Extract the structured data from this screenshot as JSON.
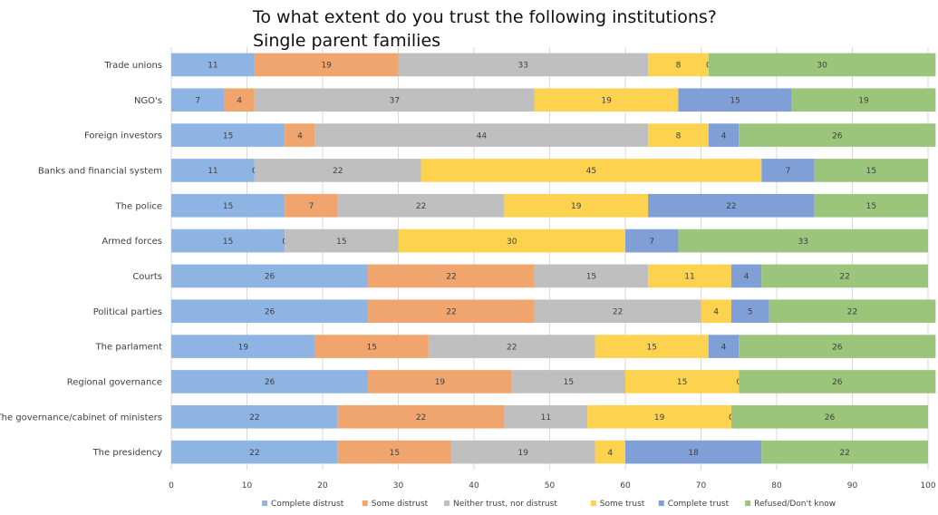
{
  "chart_data": {
    "type": "bar",
    "orientation": "horizontal",
    "stacked": true,
    "title": "To what extent do you trust the following institutions?",
    "subtitle": "Single parent families",
    "xlabel": "",
    "ylabel": "",
    "xlim": [
      0,
      100
    ],
    "xticks": [
      "0",
      "10",
      "20",
      "30",
      "40",
      "50",
      "60",
      "70",
      "80",
      "90",
      "100"
    ],
    "grid": true,
    "legend_position": "bottom",
    "categories": [
      "Trade unions",
      "NGO's",
      "Foreign investors",
      "Banks and financial system",
      "The police",
      "Armed forces",
      "Courts",
      "Political parties",
      "The parlament",
      "Regional governance",
      "The governance/cabinet of ministers",
      "The presidency"
    ],
    "series": [
      {
        "name": "Complete distrust",
        "color": "#8db4e2",
        "values": [
          11,
          7,
          15,
          11,
          15,
          15,
          26,
          26,
          19,
          26,
          22,
          22
        ]
      },
      {
        "name": "Some distrust",
        "color": "#f0a56e",
        "values": [
          19,
          4,
          4,
          0,
          7,
          0,
          22,
          22,
          15,
          19,
          22,
          15
        ]
      },
      {
        "name": "Neither trust, nor distrust",
        "color": "#bfbfbf",
        "values": [
          33,
          37,
          44,
          22,
          22,
          15,
          15,
          22,
          22,
          15,
          11,
          19
        ]
      },
      {
        "name": "Some trust",
        "color": "#fdd24f",
        "values": [
          8,
          19,
          8,
          45,
          19,
          30,
          11,
          4,
          15,
          15,
          19,
          4
        ]
      },
      {
        "name": "Complete trust",
        "color": "#7f9fd6",
        "values": [
          0,
          15,
          4,
          7,
          22,
          7,
          4,
          5,
          4,
          0,
          0,
          18
        ]
      },
      {
        "name": "Refused/Don't know",
        "color": "#9bc57a",
        "values": [
          30,
          19,
          26,
          15,
          15,
          33,
          22,
          22,
          26,
          26,
          26,
          22
        ]
      }
    ]
  }
}
